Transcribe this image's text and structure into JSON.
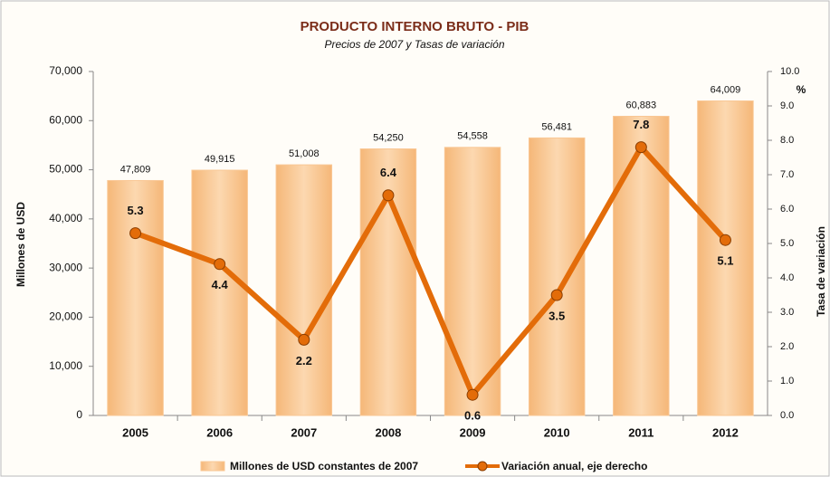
{
  "chart_data": {
    "type": "combo",
    "title": "PRODUCTO INTERNO BRUTO - PIB",
    "subtitle": "Precios de 2007 y Tasas de variación",
    "y_label": "Millones de USD",
    "y2_label": "Tasa de variación",
    "y2_unit": "%",
    "categories": [
      "2005",
      "2006",
      "2007",
      "2008",
      "2009",
      "2010",
      "2011",
      "2012"
    ],
    "series": [
      {
        "name": "Millones de USD constantes de 2007",
        "type": "bar",
        "color": "#f9c794",
        "values": [
          47809,
          49915,
          51008,
          54250,
          54558,
          56481,
          60883,
          64009
        ],
        "value_labels": [
          "47,809",
          "49,915",
          "51,008",
          "54,250",
          "54,558",
          "56,481",
          "60,883",
          "64,009"
        ]
      },
      {
        "name": "Variación anual, eje derecho",
        "type": "line",
        "color": "#e36c09",
        "axis": "y2",
        "values": [
          5.3,
          4.4,
          2.2,
          6.4,
          0.6,
          3.5,
          7.8,
          5.1
        ]
      }
    ],
    "ylim": [
      0,
      70000
    ],
    "yticks": [
      0,
      {
        "value": 10000,
        "label": "10,000"
      },
      {
        "value": 20000,
        "label": "20,000"
      },
      {
        "value": 30000,
        "label": "30,000"
      },
      {
        "value": 40000,
        "label": "40,000"
      },
      {
        "value": 50000,
        "label": "50,000"
      },
      {
        "value": 60000,
        "label": "60,000"
      },
      {
        "value": 70000,
        "label": "70,000"
      }
    ],
    "y2lim": [
      0,
      10
    ],
    "y2ticks": [
      {
        "value": 0,
        "label": "0.0"
      },
      {
        "value": 1,
        "label": "1.0"
      },
      {
        "value": 2,
        "label": "2.0"
      },
      {
        "value": 3,
        "label": "3.0"
      },
      {
        "value": 4,
        "label": "4.0"
      },
      {
        "value": 5,
        "label": "5.0"
      },
      {
        "value": 6,
        "label": "6.0"
      },
      {
        "value": 7,
        "label": "7.0"
      },
      {
        "value": 8,
        "label": "8.0"
      },
      {
        "value": 9,
        "label": "9.0"
      },
      {
        "value": 10,
        "label": "10.0"
      }
    ],
    "grid": false,
    "legend": "bottom"
  }
}
